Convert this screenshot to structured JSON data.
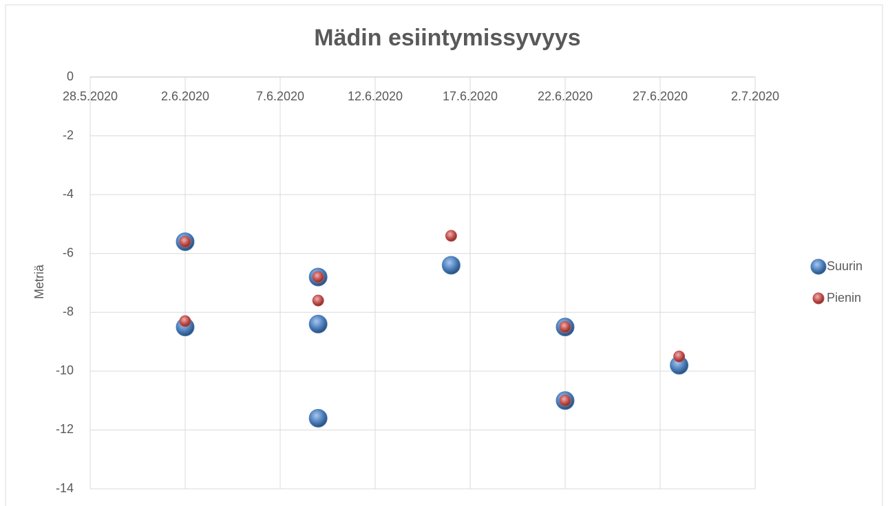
{
  "chart_data": {
    "type": "bubble",
    "title": "Mädin esiintymissyvyys",
    "ylabel": "Metriä",
    "xlim": [
      "28.5.2020",
      "2.7.2020"
    ],
    "xticks": [
      "28.5.2020",
      "2.6.2020",
      "7.6.2020",
      "12.6.2020",
      "17.6.2020",
      "22.6.2020",
      "27.6.2020",
      "2.7.2020"
    ],
    "ylim": [
      -14,
      0
    ],
    "yticks": [
      0,
      -2,
      -4,
      -6,
      -8,
      -10,
      -12,
      -14
    ],
    "grid": true,
    "legend": "right",
    "series": [
      {
        "name": "Suurin",
        "color": "#4a7ebb",
        "x": [
          "2.6.2020",
          "2.6.2020",
          "9.6.2020",
          "9.6.2020",
          "9.6.2020",
          "16.6.2020",
          "22.6.2020",
          "22.6.2020",
          "28.6.2020"
        ],
        "values": [
          -5.6,
          -8.5,
          -6.8,
          -8.4,
          -11.6,
          -6.4,
          -8.5,
          -11.0,
          -9.8
        ]
      },
      {
        "name": "Pienin",
        "color": "#c0504d",
        "x": [
          "2.6.2020",
          "2.6.2020",
          "9.6.2020",
          "9.6.2020",
          "16.6.2020",
          "22.6.2020",
          "22.6.2020",
          "28.6.2020"
        ],
        "values": [
          -5.6,
          -8.3,
          -6.8,
          -7.6,
          -5.4,
          -8.5,
          -11.0,
          -9.5
        ]
      }
    ]
  }
}
